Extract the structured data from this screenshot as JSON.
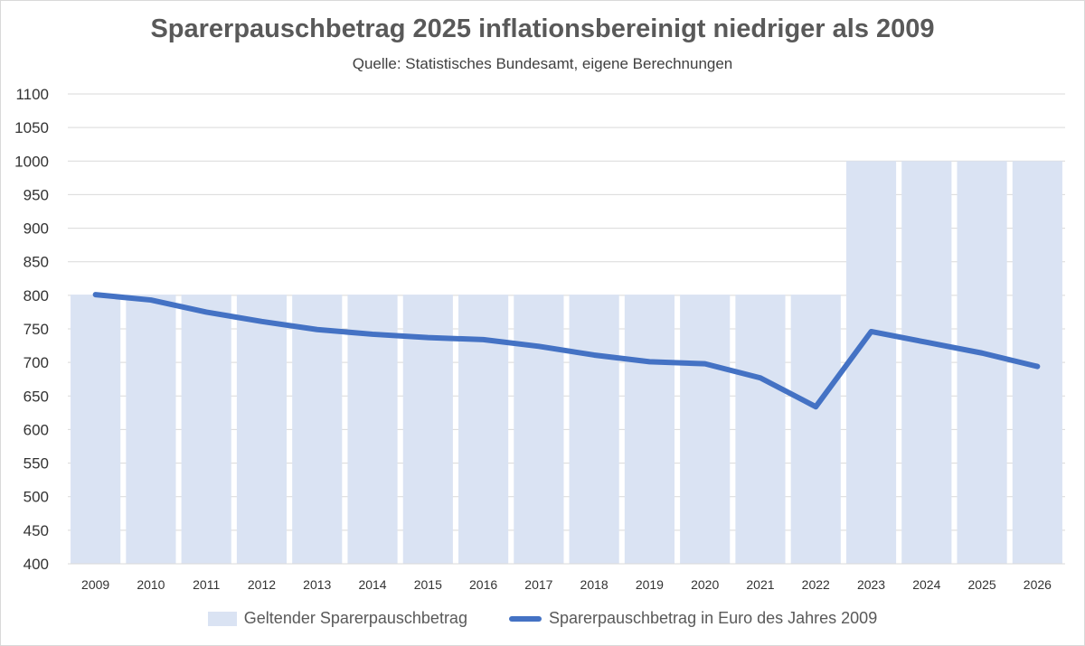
{
  "chart_data": {
    "type": "bar",
    "title": "Sparerpauschbetrag 2025 inflationsbereinigt niedriger als 2009",
    "subtitle": "Quelle: Statistisches Bundesamt, eigene Berechnungen",
    "categories": [
      "2009",
      "2010",
      "2011",
      "2012",
      "2013",
      "2014",
      "2015",
      "2016",
      "2017",
      "2018",
      "2019",
      "2020",
      "2021",
      "2022",
      "2023",
      "2024",
      "2025",
      "2026"
    ],
    "ylim": [
      400,
      1100
    ],
    "yticks": [
      400,
      450,
      500,
      550,
      600,
      650,
      700,
      750,
      800,
      850,
      900,
      950,
      1000,
      1050,
      1100
    ],
    "grid": true,
    "legend_position": "bottom",
    "series": [
      {
        "name": "Geltender Sparerpauschbetrag",
        "type": "bar",
        "color": "#dae3f3",
        "values": [
          801,
          801,
          801,
          801,
          801,
          801,
          801,
          801,
          801,
          801,
          801,
          801,
          801,
          801,
          1000,
          1000,
          1000,
          1000
        ]
      },
      {
        "name": "Sparerpauschbetrag in Euro des Jahres 2009",
        "type": "line",
        "color": "#4472c4",
        "values": [
          801,
          793,
          775,
          761,
          749,
          742,
          737,
          734,
          724,
          711,
          701,
          698,
          677,
          634,
          746,
          730,
          714,
          694
        ]
      }
    ]
  }
}
